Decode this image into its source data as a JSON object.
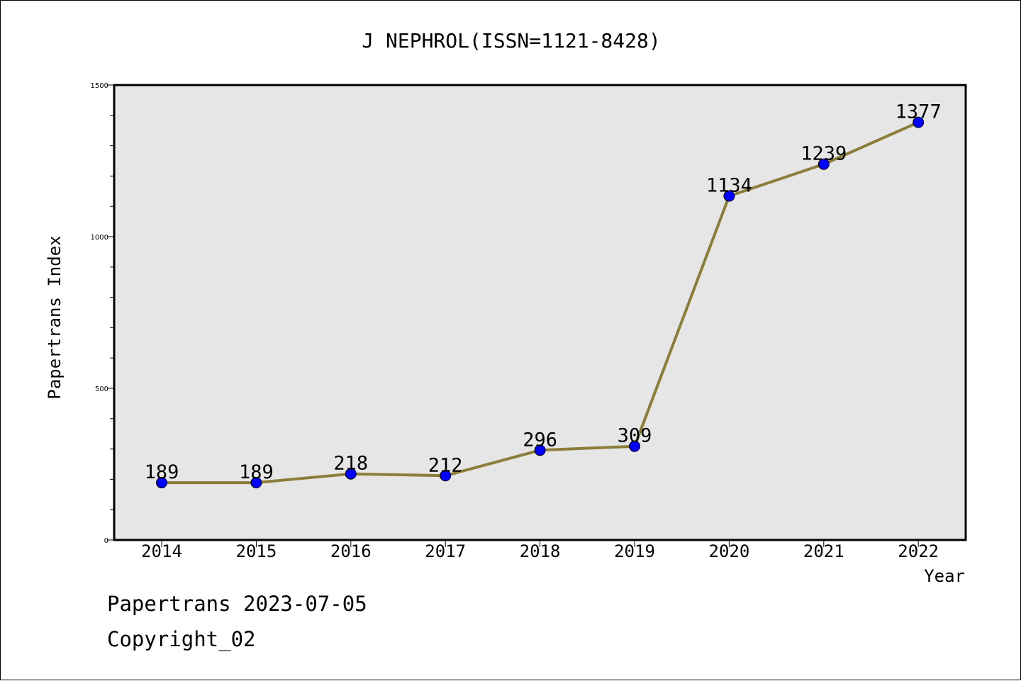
{
  "chart_data": {
    "type": "line",
    "title": "J NEPHROL(ISSN=1121-8428)",
    "xlabel": "Year",
    "ylabel": "Papertrans Index",
    "categories": [
      "2014",
      "2015",
      "2016",
      "2017",
      "2018",
      "2019",
      "2020",
      "2021",
      "2022"
    ],
    "values": [
      189,
      189,
      218,
      212,
      296,
      309,
      1134,
      1239,
      1377
    ],
    "ylim": [
      0,
      1500
    ],
    "yticks": [
      0,
      500,
      1000,
      1500
    ],
    "ytick_labels": [
      "0",
      "500",
      "1000",
      "1500"
    ],
    "grid": false,
    "legend": "none",
    "line_color": "#8b7d3a",
    "marker_color": "#0000ff",
    "plot_background": "#e6e6e6"
  },
  "footer": {
    "line1": "Papertrans 2023-07-05",
    "line2": "Copyright_02"
  }
}
